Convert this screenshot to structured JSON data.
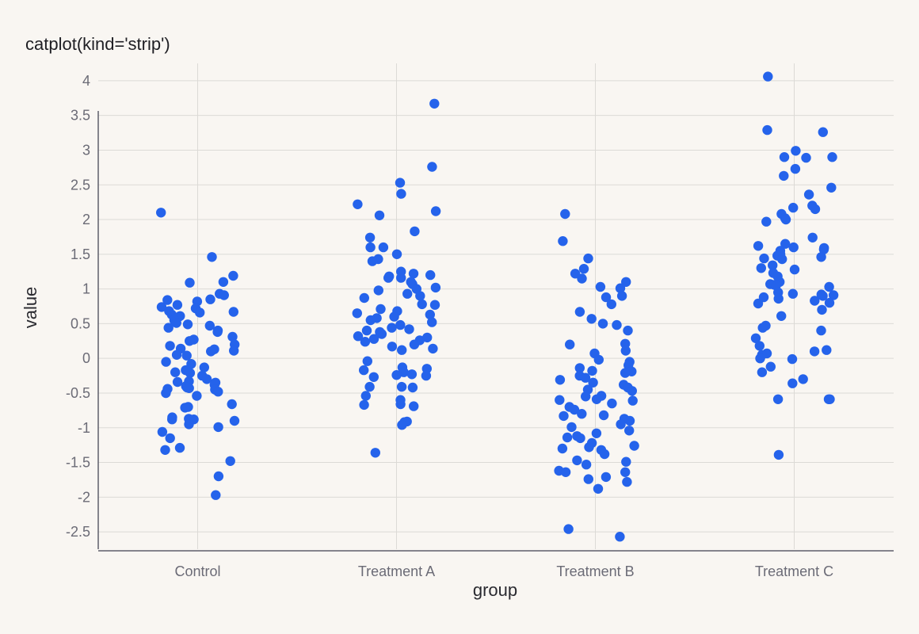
{
  "chart_data": {
    "type": "scatter",
    "title": "catplot(kind='strip')",
    "xlabel": "group",
    "ylabel": "value",
    "categories": [
      "Control",
      "Treatment A",
      "Treatment B",
      "Treatment C"
    ],
    "ylim": [
      -2.75,
      4.25
    ],
    "yticks": [
      -2.5,
      -2,
      -1.5,
      -1,
      -0.5,
      0,
      0.5,
      1,
      1.5,
      2,
      2.5,
      3,
      3.5,
      4
    ],
    "ytick_labels": [
      "-2.5",
      "-2",
      "-1.5",
      "-1",
      "-0.5",
      "0",
      "0.5",
      "1",
      "1.5",
      "2",
      "2.5",
      "3",
      "3.5",
      "4"
    ],
    "grid": true,
    "point_color": "#2563eb",
    "series": [
      {
        "category": "Control",
        "values": [
          2.1,
          1.46,
          1.19,
          1.1,
          1.09,
          0.93,
          0.91,
          0.85,
          0.84,
          0.82,
          0.77,
          0.74,
          0.72,
          0.68,
          0.67,
          0.66,
          0.63,
          0.61,
          0.59,
          0.55,
          0.51,
          0.49,
          0.47,
          0.44,
          0.4,
          0.38,
          0.31,
          0.27,
          0.25,
          0.2,
          0.18,
          0.14,
          0.13,
          0.11,
          0.1,
          0.05,
          0.04,
          -0.05,
          -0.08,
          -0.13,
          -0.17,
          -0.2,
          -0.21,
          -0.25,
          -0.3,
          -0.33,
          -0.34,
          -0.35,
          -0.38,
          -0.4,
          -0.42,
          -0.43,
          -0.44,
          -0.45,
          -0.48,
          -0.5,
          -0.54,
          -0.66,
          -0.7,
          -0.71,
          -0.85,
          -0.87,
          -0.88,
          -0.88,
          -0.9,
          -0.95,
          -0.99,
          -1.06,
          -1.15,
          -1.29,
          -1.32,
          -1.48,
          -1.7,
          -1.97
        ]
      },
      {
        "category": "Treatment A",
        "values": [
          3.67,
          2.76,
          2.53,
          2.37,
          2.22,
          2.12,
          2.06,
          1.83,
          1.74,
          1.6,
          1.6,
          1.5,
          1.43,
          1.4,
          1.25,
          1.22,
          1.2,
          1.18,
          1.16,
          1.16,
          1.1,
          1.07,
          1.02,
          1.0,
          0.98,
          0.93,
          0.9,
          0.87,
          0.78,
          0.77,
          0.71,
          0.68,
          0.65,
          0.63,
          0.6,
          0.58,
          0.55,
          0.52,
          0.48,
          0.44,
          0.42,
          0.4,
          0.38,
          0.36,
          0.35,
          0.32,
          0.3,
          0.28,
          0.26,
          0.24,
          0.2,
          0.17,
          0.14,
          0.12,
          -0.04,
          -0.13,
          -0.15,
          -0.17,
          -0.2,
          -0.23,
          -0.24,
          -0.25,
          -0.27,
          -0.41,
          -0.41,
          -0.42,
          -0.54,
          -0.6,
          -0.66,
          -0.67,
          -0.69,
          -0.91,
          -0.92,
          -0.96,
          -1.36
        ]
      },
      {
        "category": "Treatment B",
        "values": [
          2.08,
          1.69,
          1.44,
          1.29,
          1.22,
          1.15,
          1.1,
          1.03,
          1.01,
          0.9,
          0.88,
          0.78,
          0.67,
          0.57,
          0.5,
          0.48,
          0.4,
          0.21,
          0.2,
          0.11,
          0.07,
          -0.02,
          -0.05,
          -0.1,
          -0.14,
          -0.18,
          -0.19,
          -0.21,
          -0.25,
          -0.28,
          -0.31,
          -0.35,
          -0.38,
          -0.42,
          -0.45,
          -0.47,
          -0.54,
          -0.55,
          -0.59,
          -0.6,
          -0.61,
          -0.65,
          -0.7,
          -0.74,
          -0.8,
          -0.82,
          -0.83,
          -0.87,
          -0.9,
          -0.95,
          -0.99,
          -1.04,
          -1.08,
          -1.12,
          -1.14,
          -1.15,
          -1.22,
          -1.26,
          -1.28,
          -1.3,
          -1.32,
          -1.38,
          -1.47,
          -1.49,
          -1.53,
          -1.62,
          -1.64,
          -1.64,
          -1.71,
          -1.74,
          -1.78,
          -1.88,
          -2.46,
          -2.57
        ]
      },
      {
        "category": "Treatment C",
        "values": [
          4.06,
          3.29,
          3.26,
          2.99,
          2.9,
          2.9,
          2.89,
          2.73,
          2.63,
          2.46,
          2.36,
          2.2,
          2.17,
          2.15,
          2.08,
          2.02,
          2.0,
          1.97,
          1.74,
          1.65,
          1.62,
          1.6,
          1.59,
          1.57,
          1.55,
          1.5,
          1.48,
          1.46,
          1.44,
          1.43,
          1.34,
          1.3,
          1.28,
          1.23,
          1.18,
          1.1,
          1.07,
          1.06,
          1.05,
          1.03,
          0.95,
          0.93,
          0.92,
          0.91,
          0.9,
          0.88,
          0.86,
          0.83,
          0.8,
          0.79,
          0.7,
          0.61,
          0.47,
          0.44,
          0.4,
          0.29,
          0.18,
          0.12,
          0.1,
          0.07,
          0.05,
          0.0,
          -0.01,
          -0.12,
          -0.2,
          -0.3,
          -0.36,
          -0.59,
          -0.59,
          -0.59,
          -1.39
        ]
      }
    ]
  }
}
